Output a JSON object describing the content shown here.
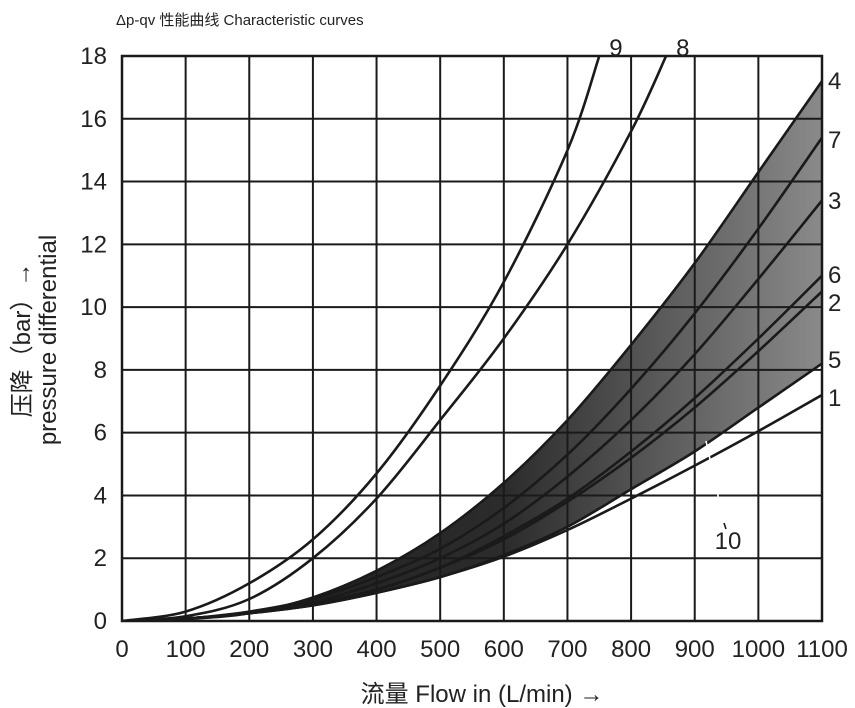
{
  "chart_data": {
    "type": "line",
    "title": "Δp-qv 性能曲线    Characteristic curves",
    "xlabel": "流量  Flow in (L/min) →",
    "ylabel_cn": "压降（bar）→",
    "ylabel_en": "pressure differential",
    "xlim": [
      0,
      1100
    ],
    "ylim": [
      0,
      18
    ],
    "xticks": [
      "0",
      "100",
      "200",
      "300",
      "400",
      "500",
      "600",
      "700",
      "800",
      "900",
      "1000",
      "1100"
    ],
    "yticks": [
      "0",
      "2",
      "4",
      "6",
      "8",
      "10",
      "12",
      "14",
      "16",
      "18"
    ],
    "grid": true,
    "shaded_band": {
      "label": "10",
      "between": [
        "4",
        "5"
      ]
    },
    "series": [
      {
        "name": "1",
        "x": [
          0,
          100,
          200,
          300,
          400,
          500,
          600,
          700,
          800,
          900,
          1000,
          1100
        ],
        "y": [
          0,
          0.08,
          0.25,
          0.5,
          0.9,
          1.4,
          2.05,
          2.9,
          3.9,
          4.95,
          6.05,
          7.2
        ]
      },
      {
        "name": "2",
        "x": [
          0,
          100,
          200,
          300,
          400,
          500,
          600,
          700,
          800,
          900,
          1000,
          1100
        ],
        "y": [
          0,
          0.08,
          0.25,
          0.55,
          1.0,
          1.7,
          2.6,
          3.8,
          5.2,
          6.8,
          8.6,
          10.5
        ]
      },
      {
        "name": "3",
        "x": [
          0,
          100,
          200,
          300,
          400,
          500,
          600,
          700,
          800,
          900,
          1000,
          1100
        ],
        "y": [
          0,
          0.08,
          0.25,
          0.6,
          1.2,
          2.0,
          3.1,
          4.6,
          6.4,
          8.5,
          10.9,
          13.4
        ]
      },
      {
        "name": "4",
        "x": [
          0,
          100,
          200,
          300,
          400,
          500,
          600,
          700,
          800,
          900,
          1000,
          1100
        ],
        "y": [
          0,
          0.06,
          0.25,
          0.75,
          1.6,
          2.8,
          4.4,
          6.4,
          8.8,
          11.4,
          14.3,
          17.2
        ]
      },
      {
        "name": "5",
        "x": [
          0,
          100,
          200,
          300,
          400,
          500,
          600,
          700,
          800,
          900,
          1000,
          1100
        ],
        "y": [
          0,
          0.08,
          0.25,
          0.5,
          0.9,
          1.4,
          2.1,
          3.0,
          4.2,
          5.4,
          6.8,
          8.2
        ]
      },
      {
        "name": "6",
        "x": [
          0,
          100,
          200,
          300,
          400,
          500,
          600,
          700,
          800,
          900,
          1000,
          1100
        ],
        "y": [
          0,
          0.08,
          0.25,
          0.55,
          1.0,
          1.7,
          2.7,
          3.9,
          5.4,
          7.1,
          9.0,
          11.0
        ]
      },
      {
        "name": "7",
        "x": [
          0,
          100,
          200,
          300,
          400,
          500,
          600,
          700,
          800,
          900,
          1000,
          1100
        ],
        "y": [
          0,
          0.08,
          0.3,
          0.7,
          1.4,
          2.3,
          3.6,
          5.3,
          7.4,
          9.8,
          12.5,
          15.4
        ]
      },
      {
        "name": "8",
        "x": [
          0,
          100,
          200,
          300,
          400,
          500,
          600,
          700,
          800,
          855
        ],
        "y": [
          0,
          0.15,
          0.7,
          2.0,
          3.9,
          6.4,
          9.0,
          12.0,
          15.6,
          18
        ]
      },
      {
        "name": "9",
        "x": [
          0,
          100,
          200,
          300,
          400,
          500,
          600,
          700,
          750
        ],
        "y": [
          0,
          0.3,
          1.2,
          2.6,
          4.7,
          7.5,
          10.8,
          15.0,
          18
        ]
      }
    ]
  }
}
